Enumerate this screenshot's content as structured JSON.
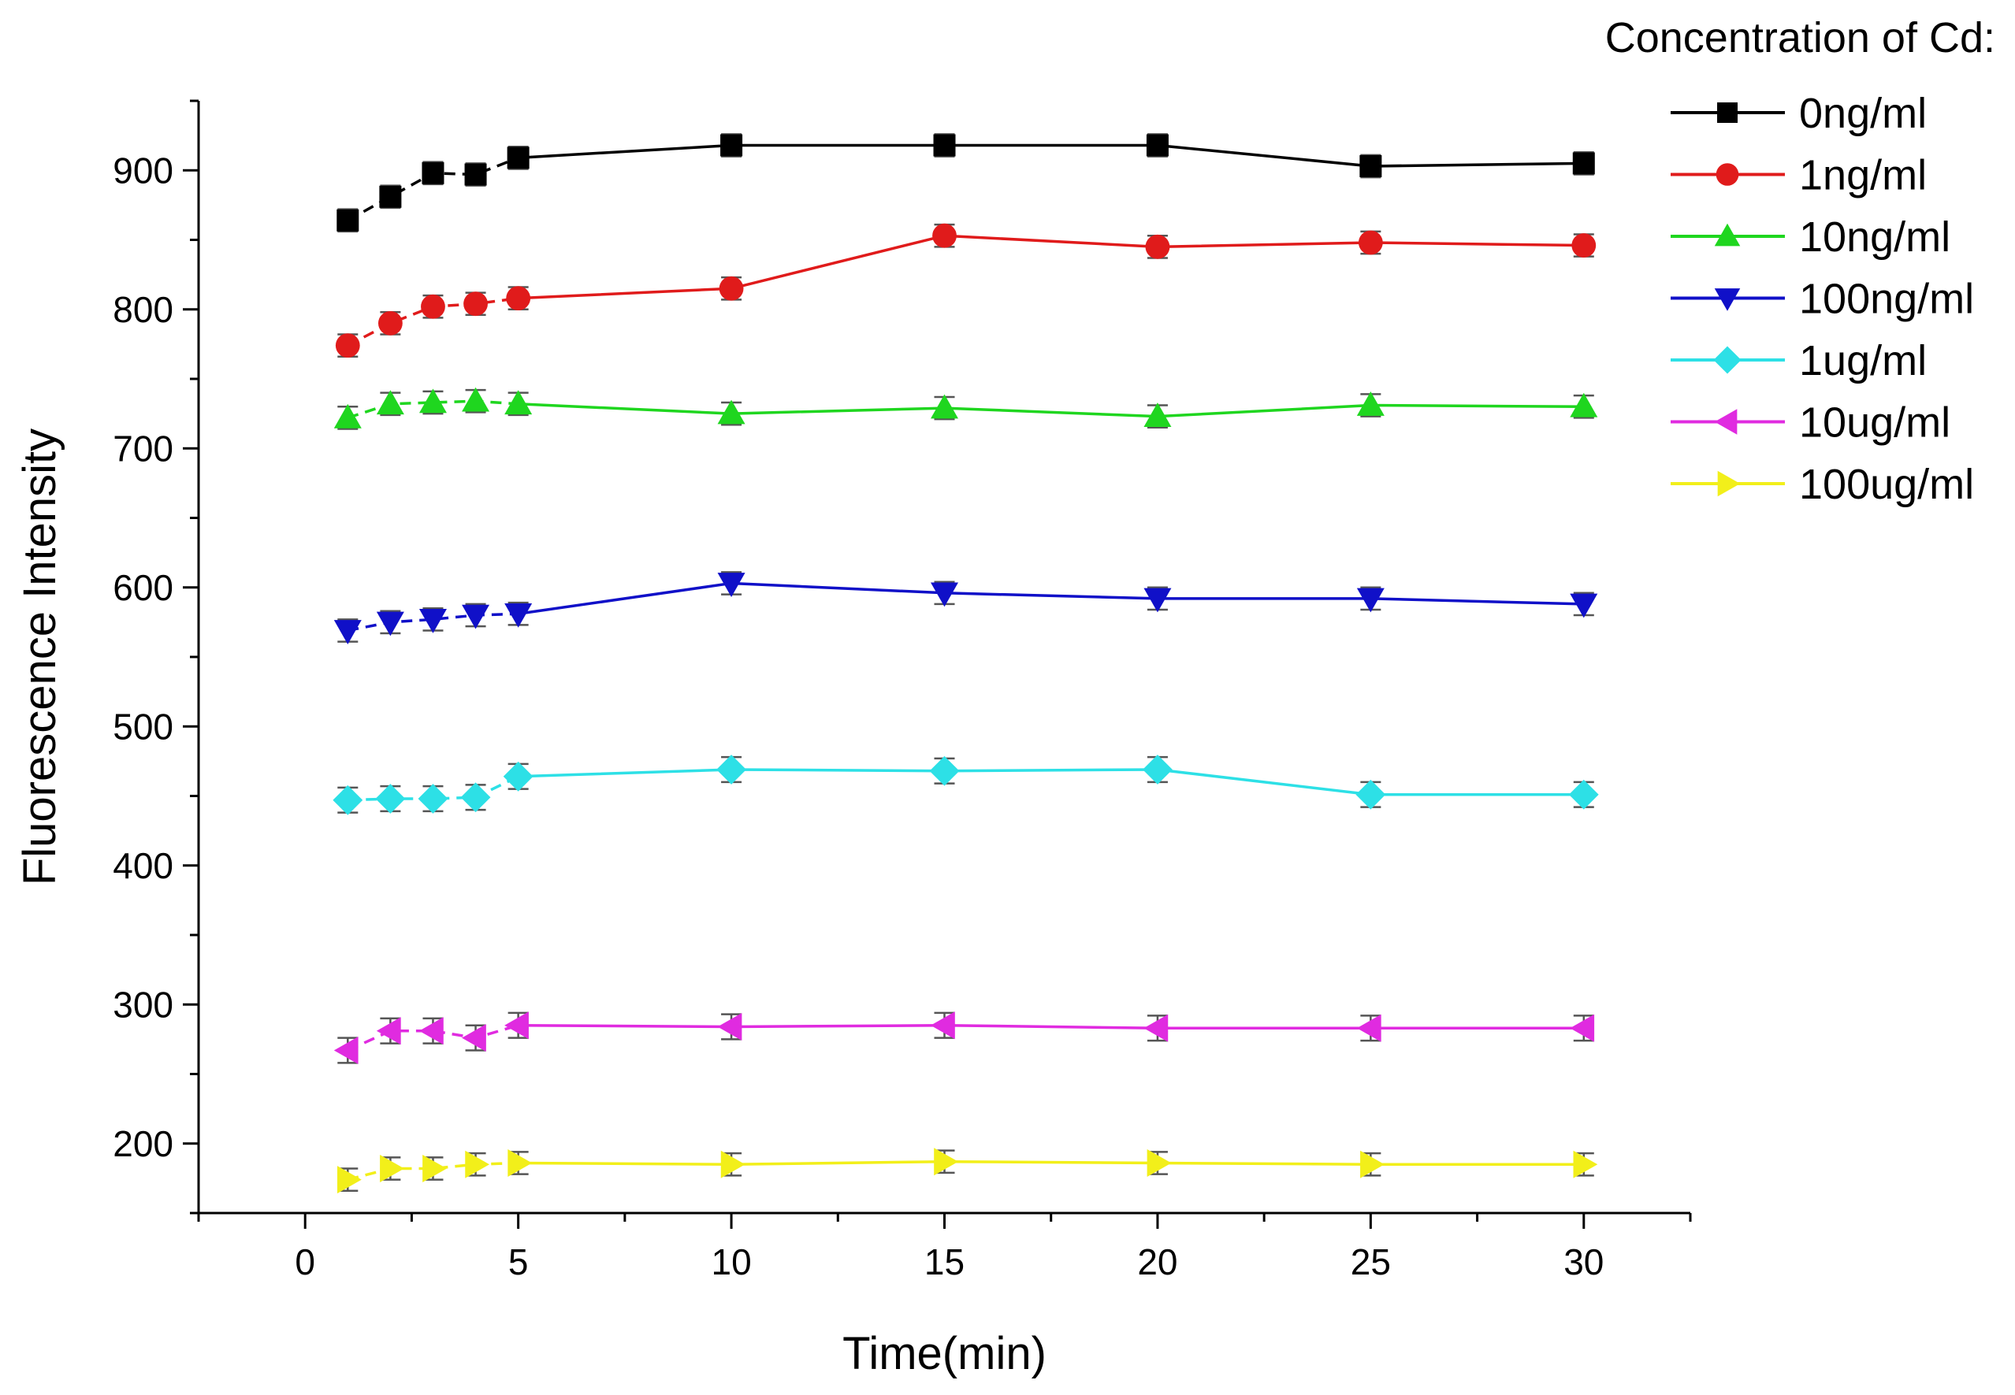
{
  "chart_data": {
    "type": "line",
    "xlabel": "Time(min)",
    "ylabel": "Fluorescence Intensity",
    "xlim": [
      -2.5,
      32.5
    ],
    "ylim": [
      150,
      950
    ],
    "x_ticks": [
      0,
      5,
      10,
      15,
      20,
      25,
      30
    ],
    "y_ticks": [
      200,
      300,
      400,
      500,
      600,
      700,
      800,
      900
    ],
    "x": [
      1,
      2,
      3,
      4,
      5,
      10,
      15,
      20,
      25,
      30
    ],
    "legend": {
      "title": "Concentration of Cd:",
      "position": "top-right"
    },
    "series": [
      {
        "name": "0ng/ml",
        "color": "#000000",
        "marker": "square",
        "values": [
          864,
          881,
          898,
          897,
          909,
          918,
          918,
          918,
          903,
          905
        ],
        "error": 8
      },
      {
        "name": "1ng/ml",
        "color": "#e01b1b",
        "marker": "circle",
        "values": [
          774,
          790,
          802,
          804,
          808,
          815,
          853,
          845,
          848,
          846
        ],
        "error": 8
      },
      {
        "name": "10ng/ml",
        "color": "#1fd61f",
        "marker": "triangle-up",
        "values": [
          722,
          732,
          733,
          734,
          732,
          725,
          729,
          723,
          731,
          730
        ],
        "error": 8
      },
      {
        "name": "100ng/ml",
        "color": "#1010c8",
        "marker": "triangle-down",
        "values": [
          569,
          575,
          577,
          580,
          581,
          603,
          596,
          592,
          592,
          588
        ],
        "error": 8
      },
      {
        "name": "1ug/ml",
        "color": "#2de0e6",
        "marker": "diamond",
        "values": [
          447,
          448,
          448,
          449,
          464,
          469,
          468,
          469,
          451,
          451
        ],
        "error": 9
      },
      {
        "name": "10ug/ml",
        "color": "#e02be0",
        "marker": "triangle-left",
        "values": [
          267,
          281,
          281,
          276,
          285,
          284,
          285,
          283,
          283,
          283
        ],
        "error": 9
      },
      {
        "name": "100ug/ml",
        "color": "#f2ef1a",
        "marker": "triangle-right",
        "values": [
          174,
          182,
          182,
          185,
          186,
          185,
          187,
          186,
          185,
          185
        ],
        "error": 8
      }
    ]
  }
}
